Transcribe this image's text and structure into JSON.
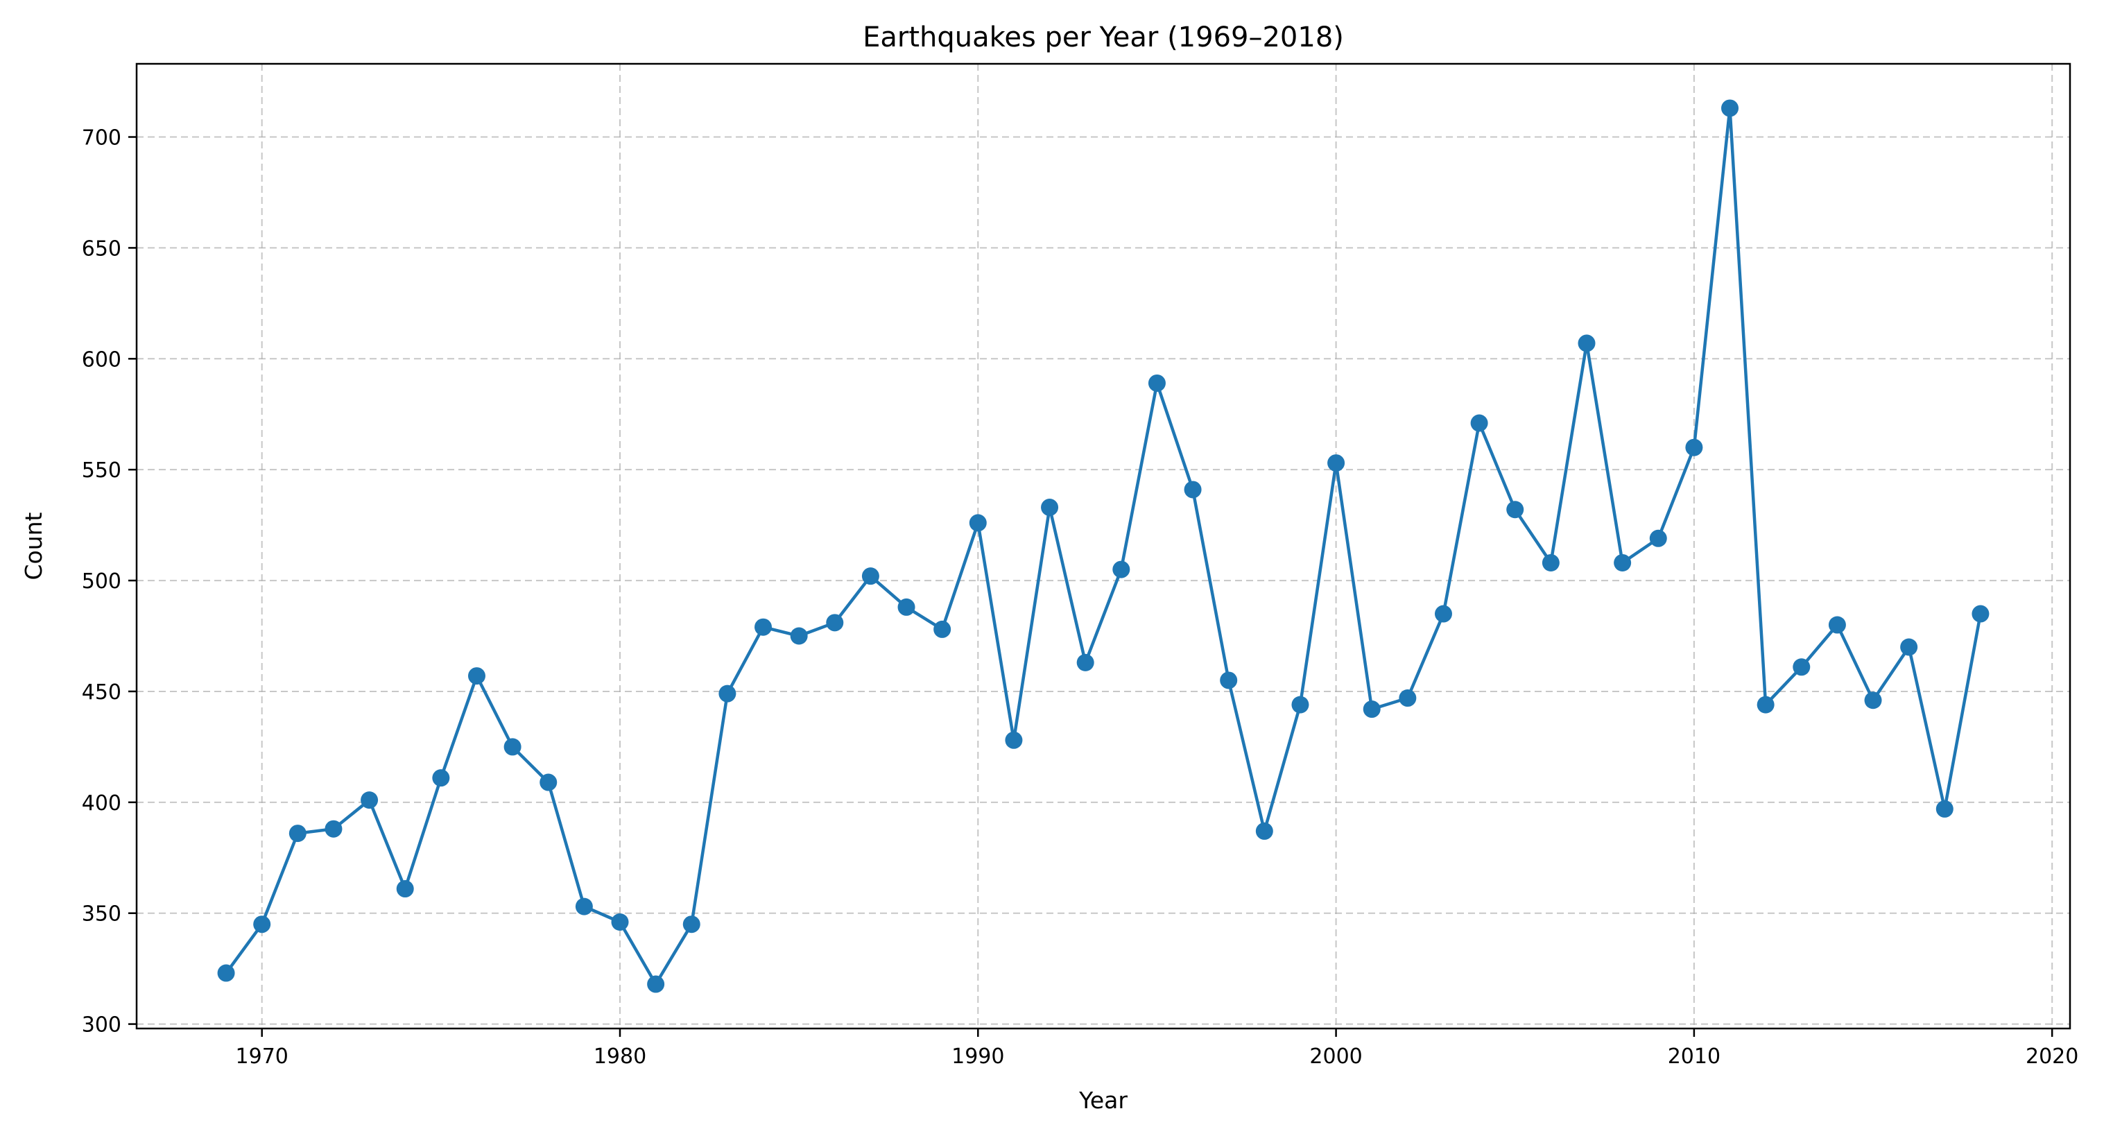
{
  "chart_data": {
    "type": "line",
    "title": "Earthquakes per Year (1969–2018)",
    "xlabel": "Year",
    "ylabel": "Count",
    "xlim": [
      1966.5,
      2020.5
    ],
    "ylim": [
      298,
      733
    ],
    "xticks": [
      1970,
      1980,
      1990,
      2000,
      2010,
      2020
    ],
    "yticks": [
      300,
      350,
      400,
      450,
      500,
      550,
      600,
      650,
      700
    ],
    "grid": true,
    "color": "#1f77b4",
    "series": [
      {
        "x": [
          1969,
          1970,
          1971,
          1972,
          1973,
          1974,
          1975,
          1976,
          1977,
          1978,
          1979,
          1980,
          1981,
          1982,
          1983,
          1984,
          1985,
          1986,
          1987,
          1988,
          1989,
          1990,
          1991,
          1992,
          1993,
          1994,
          1995,
          1996,
          1997,
          1998,
          1999,
          2000,
          2001,
          2002,
          2003,
          2004,
          2005,
          2006,
          2007,
          2008,
          2009,
          2010,
          2011,
          2012,
          2013,
          2014,
          2015,
          2016,
          2017,
          2018
        ],
        "values": [
          323,
          345,
          386,
          388,
          401,
          361,
          411,
          457,
          425,
          409,
          353,
          346,
          318,
          345,
          449,
          479,
          475,
          481,
          502,
          488,
          478,
          526,
          428,
          533,
          463,
          505,
          589,
          541,
          455,
          387,
          444,
          553,
          442,
          447,
          485,
          571,
          532,
          508,
          607,
          508,
          519,
          560,
          713,
          444,
          461,
          480,
          446,
          470,
          397,
          485
        ]
      }
    ]
  }
}
